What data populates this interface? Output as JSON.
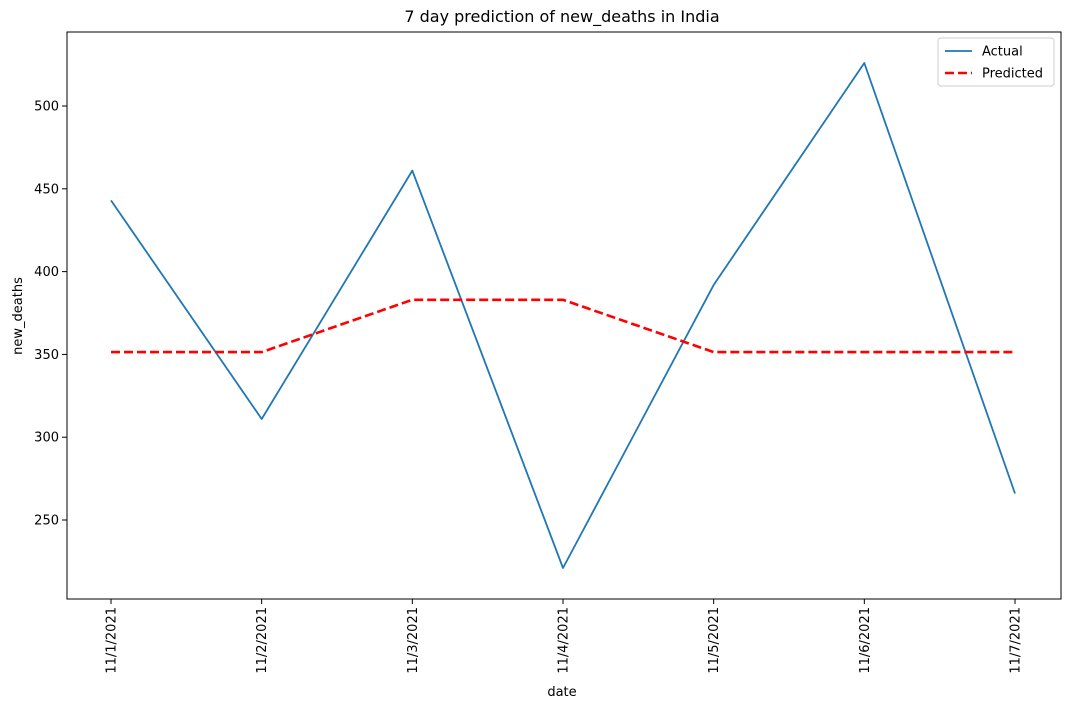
{
  "chart_data": {
    "type": "line",
    "title": "7 day prediction of new_deaths in India",
    "xlabel": "date",
    "ylabel": "new_deaths",
    "categories": [
      "11/1/2021",
      "11/2/2021",
      "11/3/2021",
      "11/4/2021",
      "11/5/2021",
      "11/6/2021",
      "11/7/2021"
    ],
    "ylim": [
      202.3,
      544.7
    ],
    "yticks": [
      250,
      300,
      350,
      400,
      450,
      500
    ],
    "grid": false,
    "legend_position": "top-right",
    "series": [
      {
        "name": "Actual",
        "values": [
          443,
          311,
          461,
          221,
          392,
          526,
          266
        ],
        "color": "#1f77b4",
        "style": "solid"
      },
      {
        "name": "Predicted",
        "values": [
          351.4,
          351.4,
          383,
          383,
          351.4,
          351.4,
          351.4
        ],
        "color": "#ff0000",
        "style": "dashed"
      }
    ]
  }
}
